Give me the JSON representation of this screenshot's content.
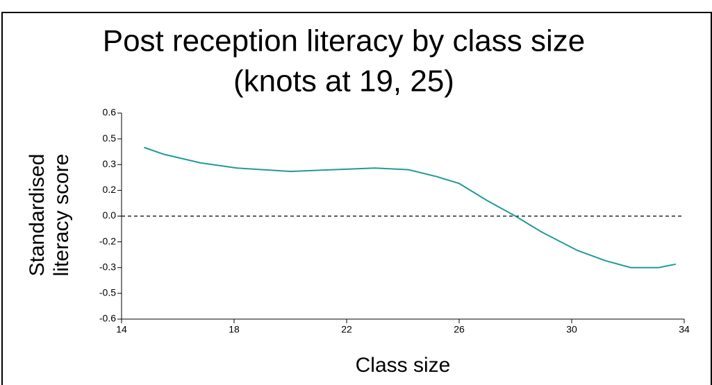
{
  "chart_data": {
    "type": "line",
    "title": [
      "Post reception literacy by class size",
      "(knots at 19, 25)"
    ],
    "y_label": [
      "Standardised",
      "literacy score"
    ],
    "x_label": "Class size",
    "x": [
      14.8,
      15.5,
      16.8,
      18.1,
      20.0,
      21.5,
      23.0,
      24.2,
      25.2,
      26.0,
      27.0,
      28.0,
      28.9,
      30.2,
      31.2,
      32.1,
      33.1,
      33.7
    ],
    "values": [
      0.4,
      0.36,
      0.31,
      0.28,
      0.26,
      0.27,
      0.28,
      0.27,
      0.23,
      0.19,
      0.09,
      0.0,
      -0.09,
      -0.2,
      -0.26,
      -0.3,
      -0.3,
      -0.28
    ],
    "color": "#1f9a9a",
    "xlim": [
      14,
      34
    ],
    "xticks": [
      14,
      18,
      22,
      26,
      30,
      34
    ],
    "ylim": [
      -0.6,
      0.6
    ],
    "yticks": [
      0.6,
      {
        "value": 0.45,
        "label": "0.5"
      },
      0.3,
      {
        "value": 0.15,
        "label": "0.2"
      },
      {
        "value": 0,
        "label": "0.0"
      },
      {
        "value": -0.15,
        "label": "-0.2"
      },
      -0.3,
      {
        "value": -0.45,
        "label": "-0.5"
      },
      -0.6
    ],
    "reference_line": 0
  }
}
